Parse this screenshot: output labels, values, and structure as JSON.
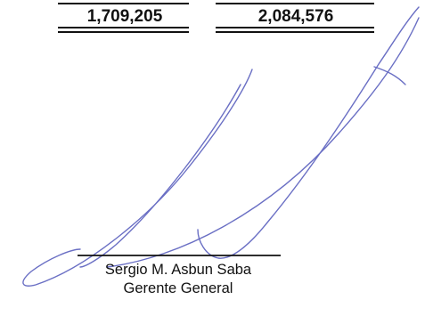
{
  "totals": [
    "1,709,205",
    "2,084,576"
  ],
  "signature": {
    "name": "Sergio M. Asbun Saba",
    "title": "Gerente General"
  }
}
